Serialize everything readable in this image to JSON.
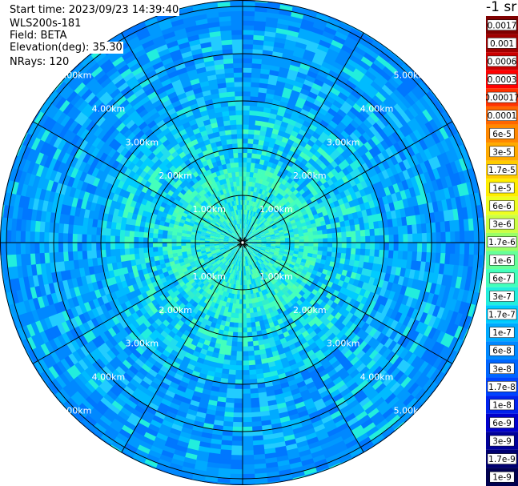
{
  "info": {
    "start_time": "Start time: 2023/09/23 14:39:40",
    "instrument": "WLS200s-181",
    "field": "Field: BETA",
    "elevation": "Elevation(deg): 35.30",
    "nrays": "NRays: 120"
  },
  "colorbar": {
    "unit": "-1 sr",
    "labels": [
      "0.0017",
      "0.001",
      "0.0006",
      "0.0003",
      "0.00017",
      "0.0001",
      "6e-5",
      "3e-5",
      "1.7e-5",
      "1e-5",
      "6e-6",
      "3e-6",
      "1.7e-6",
      "1e-6",
      "6e-7",
      "3e-7",
      "1.7e-7",
      "1e-7",
      "6e-8",
      "3e-8",
      "1.7e-8",
      "1e-8",
      "6e-9",
      "3e-9",
      "1.7e-9",
      "1e-9"
    ],
    "colors": [
      "#800000",
      "#a00000",
      "#cc0000",
      "#ff0000",
      "#ff3300",
      "#ff6600",
      "#ff8800",
      "#ffaa00",
      "#ffcc00",
      "#ffee00",
      "#eeff22",
      "#ccff44",
      "#99ff66",
      "#66ff99",
      "#44ffbb",
      "#22eedd",
      "#00ccff",
      "#00aaff",
      "#0088ff",
      "#0066ff",
      "#0044ff",
      "#0022ee",
      "#0000cc",
      "#000099",
      "#000070",
      "#000050"
    ]
  },
  "chart_data": {
    "type": "heatmap",
    "projection": "polar PPI",
    "field": "BETA",
    "unit": "-1 sr",
    "n_rays": 120,
    "elevation_deg": 35.3,
    "range_rings_km": [
      1.0,
      2.0,
      3.0,
      4.0,
      5.0
    ],
    "ring_labels": [
      "1.00km",
      "2.00km",
      "3.00km",
      "4.00km",
      "5.00km"
    ],
    "radial_lines_deg": [
      0,
      30,
      60,
      90,
      120,
      150,
      180,
      210,
      240,
      270,
      300,
      330
    ],
    "max_range_km": 5.2,
    "dominant_values": {
      "near_range_0_2km": "1e-7 to 6e-7",
      "mid_range_2_4km": "3e-8 to 1e-7",
      "far_range_4_5km": "1.7e-8 to 6e-8"
    },
    "grid": true
  }
}
